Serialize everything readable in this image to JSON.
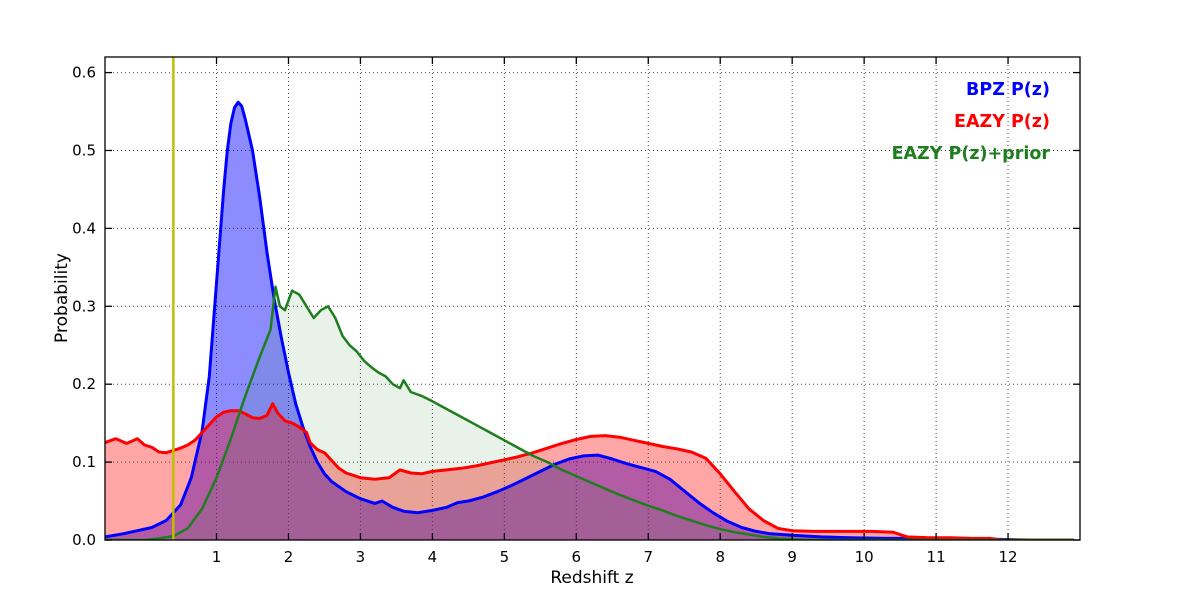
{
  "figure": {
    "background": "#ffffff",
    "plot_background": "#ffffff",
    "frame_color": "#000000",
    "grid_color": "#444444"
  },
  "chart_data": {
    "type": "area",
    "title": "",
    "xlabel": "Redshift z",
    "ylabel": "Probability",
    "xlim": [
      -0.55,
      13.0
    ],
    "ylim": [
      0,
      0.62
    ],
    "xticks": [
      1,
      2,
      3,
      4,
      5,
      6,
      7,
      8,
      9,
      10,
      11,
      12
    ],
    "yticks": [
      0.0,
      0.1,
      0.2,
      0.3,
      0.4,
      0.5,
      0.6
    ],
    "ytick_labels": [
      "0.0",
      "0.1",
      "0.2",
      "0.3",
      "0.4",
      "0.5",
      "0.6"
    ],
    "grid": "dotted",
    "legend_position": "top-right",
    "vline": {
      "x": 0.4,
      "color": "#bfbf00",
      "width": 2.5
    },
    "series": [
      {
        "id": "bpz",
        "name": "BPZ P(z)",
        "color": "#0000ff",
        "fill_opacity": 0.45,
        "line_width": 3,
        "points": [
          [
            -0.55,
            0.004
          ],
          [
            -0.3,
            0.008
          ],
          [
            -0.1,
            0.012
          ],
          [
            0.1,
            0.016
          ],
          [
            0.3,
            0.025
          ],
          [
            0.5,
            0.045
          ],
          [
            0.65,
            0.08
          ],
          [
            0.8,
            0.14
          ],
          [
            0.9,
            0.21
          ],
          [
            1.0,
            0.33
          ],
          [
            1.05,
            0.39
          ],
          [
            1.1,
            0.45
          ],
          [
            1.15,
            0.5
          ],
          [
            1.2,
            0.535
          ],
          [
            1.25,
            0.555
          ],
          [
            1.3,
            0.562
          ],
          [
            1.35,
            0.557
          ],
          [
            1.4,
            0.54
          ],
          [
            1.5,
            0.5
          ],
          [
            1.6,
            0.44
          ],
          [
            1.7,
            0.37
          ],
          [
            1.8,
            0.31
          ],
          [
            1.9,
            0.26
          ],
          [
            2.0,
            0.215
          ],
          [
            2.1,
            0.175
          ],
          [
            2.2,
            0.145
          ],
          [
            2.3,
            0.12
          ],
          [
            2.4,
            0.1
          ],
          [
            2.5,
            0.085
          ],
          [
            2.6,
            0.075
          ],
          [
            2.8,
            0.062
          ],
          [
            3.0,
            0.053
          ],
          [
            3.2,
            0.047
          ],
          [
            3.3,
            0.05
          ],
          [
            3.45,
            0.042
          ],
          [
            3.6,
            0.037
          ],
          [
            3.8,
            0.035
          ],
          [
            4.0,
            0.038
          ],
          [
            4.2,
            0.042
          ],
          [
            4.35,
            0.048
          ],
          [
            4.5,
            0.05
          ],
          [
            4.7,
            0.055
          ],
          [
            4.9,
            0.062
          ],
          [
            5.1,
            0.07
          ],
          [
            5.3,
            0.079
          ],
          [
            5.5,
            0.088
          ],
          [
            5.7,
            0.097
          ],
          [
            5.9,
            0.104
          ],
          [
            6.1,
            0.108
          ],
          [
            6.3,
            0.109
          ],
          [
            6.5,
            0.104
          ],
          [
            6.7,
            0.098
          ],
          [
            6.9,
            0.093
          ],
          [
            7.1,
            0.088
          ],
          [
            7.3,
            0.078
          ],
          [
            7.5,
            0.063
          ],
          [
            7.7,
            0.048
          ],
          [
            7.9,
            0.035
          ],
          [
            8.1,
            0.024
          ],
          [
            8.3,
            0.016
          ],
          [
            8.5,
            0.011
          ],
          [
            8.7,
            0.008
          ],
          [
            9.0,
            0.006
          ],
          [
            9.4,
            0.004
          ],
          [
            9.8,
            0.003
          ],
          [
            10.3,
            0.002
          ],
          [
            10.8,
            0.002
          ],
          [
            11.3,
            0.001
          ],
          [
            11.8,
            0.001
          ],
          [
            12.3,
            0.0
          ],
          [
            12.9,
            0.0
          ]
        ]
      },
      {
        "id": "eazy",
        "name": "EAZY P(z)",
        "color": "#ff0000",
        "fill_opacity": 0.35,
        "line_width": 3,
        "points": [
          [
            -0.55,
            0.125
          ],
          [
            -0.4,
            0.13
          ],
          [
            -0.25,
            0.124
          ],
          [
            -0.1,
            0.13
          ],
          [
            0.0,
            0.122
          ],
          [
            0.1,
            0.119
          ],
          [
            0.2,
            0.113
          ],
          [
            0.3,
            0.112
          ],
          [
            0.4,
            0.115
          ],
          [
            0.5,
            0.118
          ],
          [
            0.6,
            0.122
          ],
          [
            0.7,
            0.128
          ],
          [
            0.8,
            0.138
          ],
          [
            0.9,
            0.148
          ],
          [
            1.0,
            0.158
          ],
          [
            1.1,
            0.164
          ],
          [
            1.2,
            0.166
          ],
          [
            1.3,
            0.166
          ],
          [
            1.4,
            0.162
          ],
          [
            1.5,
            0.157
          ],
          [
            1.6,
            0.156
          ],
          [
            1.7,
            0.16
          ],
          [
            1.78,
            0.175
          ],
          [
            1.85,
            0.163
          ],
          [
            1.95,
            0.153
          ],
          [
            2.05,
            0.15
          ],
          [
            2.15,
            0.145
          ],
          [
            2.25,
            0.138
          ],
          [
            2.3,
            0.125
          ],
          [
            2.4,
            0.116
          ],
          [
            2.5,
            0.112
          ],
          [
            2.6,
            0.102
          ],
          [
            2.7,
            0.092
          ],
          [
            2.8,
            0.086
          ],
          [
            2.9,
            0.083
          ],
          [
            3.0,
            0.08
          ],
          [
            3.2,
            0.078
          ],
          [
            3.4,
            0.08
          ],
          [
            3.55,
            0.09
          ],
          [
            3.7,
            0.086
          ],
          [
            3.85,
            0.085
          ],
          [
            4.0,
            0.088
          ],
          [
            4.2,
            0.09
          ],
          [
            4.4,
            0.092
          ],
          [
            4.6,
            0.095
          ],
          [
            4.8,
            0.099
          ],
          [
            5.0,
            0.103
          ],
          [
            5.2,
            0.107
          ],
          [
            5.4,
            0.112
          ],
          [
            5.6,
            0.118
          ],
          [
            5.8,
            0.124
          ],
          [
            6.0,
            0.129
          ],
          [
            6.2,
            0.133
          ],
          [
            6.4,
            0.134
          ],
          [
            6.6,
            0.132
          ],
          [
            6.8,
            0.128
          ],
          [
            7.0,
            0.124
          ],
          [
            7.2,
            0.12
          ],
          [
            7.4,
            0.117
          ],
          [
            7.6,
            0.113
          ],
          [
            7.8,
            0.105
          ],
          [
            8.0,
            0.085
          ],
          [
            8.2,
            0.062
          ],
          [
            8.4,
            0.04
          ],
          [
            8.6,
            0.025
          ],
          [
            8.8,
            0.015
          ],
          [
            9.0,
            0.012
          ],
          [
            9.3,
            0.011
          ],
          [
            9.7,
            0.011
          ],
          [
            10.1,
            0.011
          ],
          [
            10.4,
            0.01
          ],
          [
            10.6,
            0.004
          ],
          [
            10.9,
            0.003
          ],
          [
            11.2,
            0.003
          ],
          [
            11.5,
            0.002
          ],
          [
            11.75,
            0.002
          ],
          [
            11.9,
            0.0
          ],
          [
            12.9,
            0.0
          ]
        ]
      },
      {
        "id": "eazy-prior",
        "name": "EAZY P(z)+prior",
        "color": "#1e7e1e",
        "fill_opacity": 0.1,
        "line_width": 2.5,
        "points": [
          [
            -0.55,
            0.0
          ],
          [
            0.0,
            0.0
          ],
          [
            0.2,
            0.002
          ],
          [
            0.4,
            0.005
          ],
          [
            0.6,
            0.015
          ],
          [
            0.8,
            0.04
          ],
          [
            1.0,
            0.08
          ],
          [
            1.2,
            0.13
          ],
          [
            1.4,
            0.185
          ],
          [
            1.6,
            0.235
          ],
          [
            1.75,
            0.27
          ],
          [
            1.82,
            0.325
          ],
          [
            1.88,
            0.3
          ],
          [
            1.95,
            0.295
          ],
          [
            2.05,
            0.32
          ],
          [
            2.15,
            0.315
          ],
          [
            2.25,
            0.3
          ],
          [
            2.35,
            0.285
          ],
          [
            2.45,
            0.295
          ],
          [
            2.55,
            0.3
          ],
          [
            2.65,
            0.285
          ],
          [
            2.75,
            0.262
          ],
          [
            2.85,
            0.25
          ],
          [
            2.95,
            0.242
          ],
          [
            3.05,
            0.23
          ],
          [
            3.15,
            0.222
          ],
          [
            3.25,
            0.215
          ],
          [
            3.35,
            0.21
          ],
          [
            3.45,
            0.2
          ],
          [
            3.55,
            0.195
          ],
          [
            3.6,
            0.205
          ],
          [
            3.7,
            0.19
          ],
          [
            3.85,
            0.185
          ],
          [
            4.0,
            0.178
          ],
          [
            4.2,
            0.168
          ],
          [
            4.4,
            0.158
          ],
          [
            4.6,
            0.148
          ],
          [
            4.8,
            0.138
          ],
          [
            5.0,
            0.128
          ],
          [
            5.2,
            0.118
          ],
          [
            5.4,
            0.108
          ],
          [
            5.6,
            0.1
          ],
          [
            5.8,
            0.09
          ],
          [
            6.0,
            0.082
          ],
          [
            6.2,
            0.074
          ],
          [
            6.4,
            0.066
          ],
          [
            6.6,
            0.058
          ],
          [
            6.8,
            0.051
          ],
          [
            7.0,
            0.044
          ],
          [
            7.2,
            0.038
          ],
          [
            7.4,
            0.031
          ],
          [
            7.6,
            0.025
          ],
          [
            7.8,
            0.019
          ],
          [
            8.0,
            0.014
          ],
          [
            8.2,
            0.01
          ],
          [
            8.4,
            0.007
          ],
          [
            8.6,
            0.004
          ],
          [
            8.8,
            0.002
          ],
          [
            9.0,
            0.001
          ],
          [
            9.3,
            0.0
          ],
          [
            12.9,
            0.0
          ]
        ]
      }
    ]
  }
}
